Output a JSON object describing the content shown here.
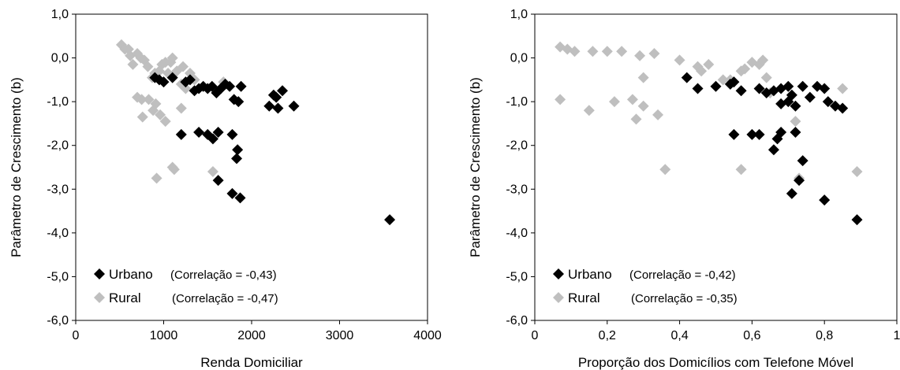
{
  "chart_data": [
    {
      "type": "scatter",
      "xlabel": "Renda Domiciliar",
      "ylabel": "Parâmetro de Crescimento (b)",
      "xlim": [
        0,
        4000
      ],
      "ylim": [
        -6,
        1
      ],
      "x_ticks": [
        "0",
        "1000",
        "2000",
        "3000",
        "4000"
      ],
      "y_ticks": [
        "1,0",
        "0,0",
        "-1,0",
        "-2,0",
        "-3,0",
        "-4,0",
        "-5,0",
        "-6,0"
      ],
      "legend_position": "bottom-left",
      "grid": false,
      "series": [
        {
          "name": "Urbano",
          "note": "(Correlação = -0,43)",
          "color": "#000000",
          "marker": "diamond",
          "points": [
            [
              900,
              -0.45
            ],
            [
              950,
              -0.5
            ],
            [
              1000,
              -0.55
            ],
            [
              1100,
              -0.45
            ],
            [
              1250,
              -0.55
            ],
            [
              1300,
              -0.5
            ],
            [
              1350,
              -0.75
            ],
            [
              1400,
              -0.7
            ],
            [
              1450,
              -0.65
            ],
            [
              1500,
              -0.7
            ],
            [
              1550,
              -0.65
            ],
            [
              1600,
              -0.8
            ],
            [
              1650,
              -0.7
            ],
            [
              1700,
              -0.6
            ],
            [
              1750,
              -0.65
            ],
            [
              1800,
              -0.95
            ],
            [
              1850,
              -1.0
            ],
            [
              1880,
              -0.65
            ],
            [
              2200,
              -1.1
            ],
            [
              2250,
              -0.85
            ],
            [
              2280,
              -0.9
            ],
            [
              2300,
              -1.15
            ],
            [
              2350,
              -0.75
            ],
            [
              2480,
              -1.1
            ],
            [
              1200,
              -1.75
            ],
            [
              1400,
              -1.7
            ],
            [
              1500,
              -1.75
            ],
            [
              1560,
              -1.85
            ],
            [
              1620,
              -1.7
            ],
            [
              1780,
              -1.75
            ],
            [
              1840,
              -2.1
            ],
            [
              1830,
              -2.3
            ],
            [
              1620,
              -2.8
            ],
            [
              1780,
              -3.1
            ],
            [
              1870,
              -3.2
            ],
            [
              3570,
              -3.7
            ]
          ]
        },
        {
          "name": "Rural",
          "note": "(Correlação = -0,47)",
          "color": "#bfbfbf",
          "marker": "diamond",
          "points": [
            [
              520,
              0.3
            ],
            [
              560,
              0.2
            ],
            [
              600,
              0.2
            ],
            [
              620,
              0.05
            ],
            [
              650,
              -0.15
            ],
            [
              700,
              0.1
            ],
            [
              740,
              0.0
            ],
            [
              780,
              -0.05
            ],
            [
              820,
              -0.2
            ],
            [
              870,
              -0.45
            ],
            [
              900,
              -0.35
            ],
            [
              950,
              -0.3
            ],
            [
              980,
              -0.15
            ],
            [
              1020,
              -0.1
            ],
            [
              1050,
              -0.35
            ],
            [
              1080,
              -0.1
            ],
            [
              1100,
              0.0
            ],
            [
              1150,
              -0.3
            ],
            [
              1200,
              -0.6
            ],
            [
              1250,
              -0.7
            ],
            [
              1220,
              -0.2
            ],
            [
              1300,
              -0.35
            ],
            [
              1350,
              -0.5
            ],
            [
              1680,
              -0.55
            ],
            [
              700,
              -0.9
            ],
            [
              750,
              -0.95
            ],
            [
              760,
              -1.35
            ],
            [
              830,
              -0.95
            ],
            [
              880,
              -1.2
            ],
            [
              910,
              -1.05
            ],
            [
              960,
              -1.3
            ],
            [
              1020,
              -1.45
            ],
            [
              1200,
              -1.15
            ],
            [
              920,
              -2.75
            ],
            [
              1100,
              -2.5
            ],
            [
              1120,
              -2.55
            ],
            [
              1560,
              -2.6
            ]
          ]
        }
      ]
    },
    {
      "type": "scatter",
      "xlabel": "Proporção dos Domicílios com Telefone Móvel",
      "ylabel": "Parâmetro de Crescimento (b)",
      "xlim": [
        0,
        1
      ],
      "ylim": [
        -6,
        1
      ],
      "x_ticks": [
        "0",
        "0,2",
        "0,4",
        "0,6",
        "0,8",
        "1"
      ],
      "y_ticks": [
        "1,0",
        "0,0",
        "-1,0",
        "-2,0",
        "-3,0",
        "-4,0",
        "-5,0",
        "-6,0"
      ],
      "legend_position": "bottom-left",
      "grid": false,
      "series": [
        {
          "name": "Urbano",
          "note": "(Correlação = -0,42)",
          "color": "#000000",
          "marker": "diamond",
          "points": [
            [
              0.42,
              -0.45
            ],
            [
              0.45,
              -0.7
            ],
            [
              0.5,
              -0.65
            ],
            [
              0.54,
              -0.6
            ],
            [
              0.57,
              -0.75
            ],
            [
              0.55,
              -0.55
            ],
            [
              0.62,
              -0.7
            ],
            [
              0.64,
              -0.8
            ],
            [
              0.66,
              -0.75
            ],
            [
              0.68,
              -0.7
            ],
            [
              0.7,
              -0.65
            ],
            [
              0.71,
              -0.85
            ],
            [
              0.72,
              -1.1
            ],
            [
              0.7,
              -1.0
            ],
            [
              0.74,
              -0.65
            ],
            [
              0.76,
              -0.9
            ],
            [
              0.78,
              -0.65
            ],
            [
              0.8,
              -0.7
            ],
            [
              0.81,
              -1.0
            ],
            [
              0.83,
              -1.1
            ],
            [
              0.85,
              -1.15
            ],
            [
              0.68,
              -1.05
            ],
            [
              0.55,
              -1.75
            ],
            [
              0.6,
              -1.75
            ],
            [
              0.62,
              -1.75
            ],
            [
              0.68,
              -1.7
            ],
            [
              0.72,
              -1.7
            ],
            [
              0.67,
              -1.85
            ],
            [
              0.66,
              -2.1
            ],
            [
              0.74,
              -2.35
            ],
            [
              0.73,
              -2.8
            ],
            [
              0.71,
              -3.1
            ],
            [
              0.8,
              -3.25
            ],
            [
              0.89,
              -3.7
            ]
          ]
        },
        {
          "name": "Rural",
          "note": "(Correlação = -0,35)",
          "color": "#bfbfbf",
          "marker": "diamond",
          "points": [
            [
              0.07,
              0.25
            ],
            [
              0.09,
              0.2
            ],
            [
              0.11,
              0.15
            ],
            [
              0.16,
              0.15
            ],
            [
              0.2,
              0.15
            ],
            [
              0.24,
              0.15
            ],
            [
              0.29,
              0.05
            ],
            [
              0.33,
              0.1
            ],
            [
              0.4,
              -0.05
            ],
            [
              0.45,
              -0.2
            ],
            [
              0.46,
              -0.3
            ],
            [
              0.48,
              -0.15
            ],
            [
              0.52,
              -0.5
            ],
            [
              0.54,
              -0.5
            ],
            [
              0.57,
              -0.3
            ],
            [
              0.58,
              -0.25
            ],
            [
              0.6,
              -0.1
            ],
            [
              0.62,
              -0.15
            ],
            [
              0.63,
              -0.05
            ],
            [
              0.64,
              -0.45
            ],
            [
              0.65,
              -0.8
            ],
            [
              0.74,
              -0.65
            ],
            [
              0.85,
              -0.7
            ],
            [
              0.07,
              -0.95
            ],
            [
              0.15,
              -1.2
            ],
            [
              0.22,
              -1.0
            ],
            [
              0.27,
              -0.95
            ],
            [
              0.28,
              -1.4
            ],
            [
              0.3,
              -1.1
            ],
            [
              0.3,
              -0.45
            ],
            [
              0.34,
              -1.3
            ],
            [
              0.36,
              -2.55
            ],
            [
              0.57,
              -2.55
            ],
            [
              0.72,
              -1.45
            ],
            [
              0.73,
              -2.75
            ],
            [
              0.89,
              -2.6
            ]
          ]
        }
      ]
    }
  ]
}
